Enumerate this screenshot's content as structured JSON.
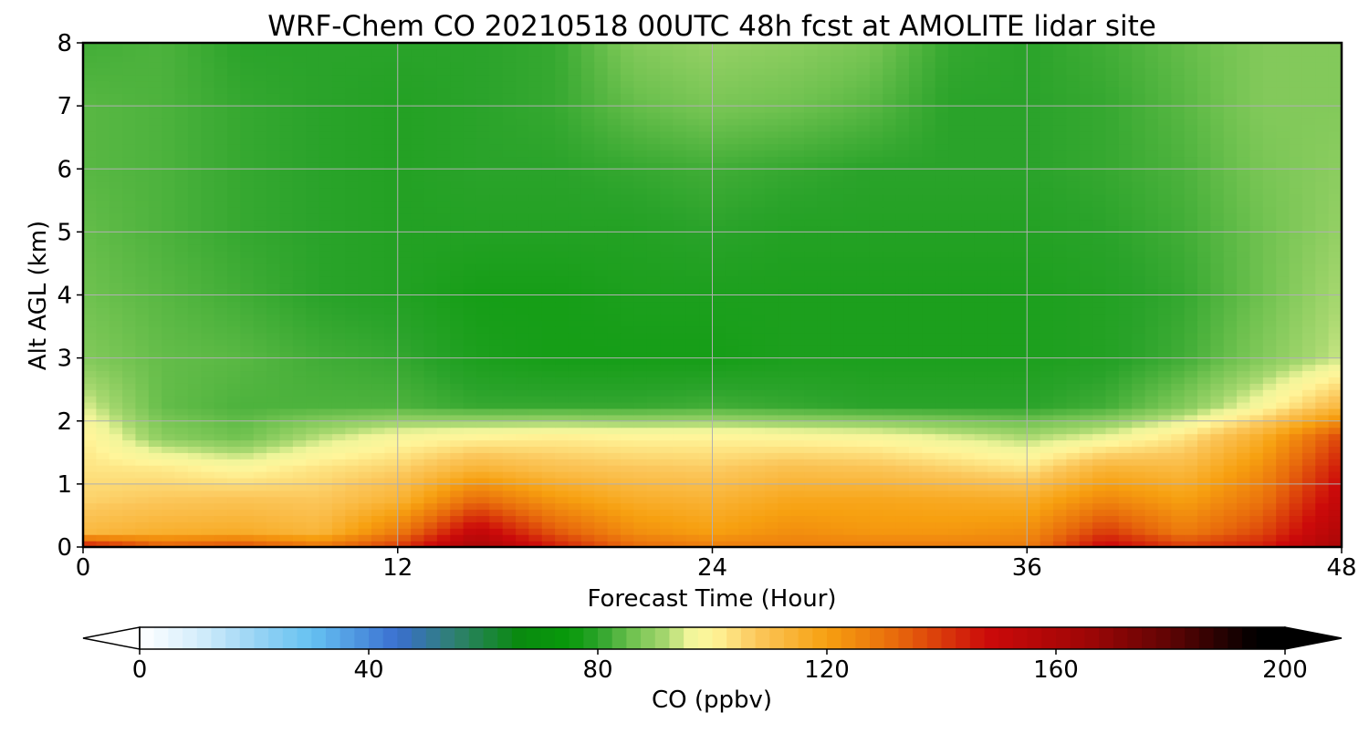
{
  "chart_data": {
    "type": "heatmap",
    "title": "WRF-Chem CO  20210518 00UTC 48h fcst at AMOLITE lidar site",
    "xlabel": "Forecast Time (Hour)",
    "ylabel": "Alt AGL (km)",
    "xlim": [
      0,
      48
    ],
    "ylim": [
      0,
      8
    ],
    "x_ticks": [
      "0",
      "12",
      "24",
      "36",
      "48"
    ],
    "y_ticks": [
      "0",
      "1",
      "2",
      "3",
      "4",
      "5",
      "6",
      "7",
      "8"
    ],
    "grid": true,
    "x": [
      0,
      3,
      6,
      9,
      12,
      15,
      18,
      21,
      24,
      27,
      30,
      33,
      36,
      39,
      42,
      45,
      48
    ],
    "y": [
      0,
      0.25,
      0.75,
      1.25,
      1.75,
      2.25,
      3,
      4,
      5,
      6,
      7,
      8
    ],
    "z_rows": [
      [
        148,
        135,
        138,
        130,
        140,
        162,
        145,
        132,
        128,
        128,
        128,
        128,
        128,
        150,
        140,
        145,
        162
      ],
      [
        112,
        115,
        116,
        113,
        128,
        152,
        135,
        124,
        120,
        124,
        122,
        122,
        124,
        140,
        128,
        138,
        158
      ],
      [
        106,
        108,
        109,
        108,
        114,
        132,
        122,
        116,
        114,
        118,
        118,
        117,
        116,
        126,
        120,
        130,
        152
      ],
      [
        103,
        102,
        99,
        103,
        106,
        114,
        110,
        108,
        107,
        110,
        109,
        106,
        103,
        114,
        112,
        124,
        146
      ],
      [
        101,
        89,
        86,
        93,
        98,
        100,
        101,
        100,
        100,
        99,
        98,
        95,
        92,
        96,
        103,
        116,
        138
      ],
      [
        95,
        85,
        83,
        83,
        83,
        81,
        81,
        81,
        82,
        81,
        80,
        80,
        80,
        82,
        88,
        98,
        112
      ],
      [
        88,
        85,
        84,
        82,
        81,
        78,
        77,
        77,
        77,
        78,
        78,
        78,
        78,
        79,
        82,
        88,
        94
      ],
      [
        86,
        84,
        82,
        80,
        79,
        77,
        77,
        78,
        78,
        78,
        78,
        78,
        78,
        79,
        81,
        86,
        92
      ],
      [
        85,
        83,
        81,
        80,
        79,
        79,
        79,
        79,
        80,
        79,
        79,
        79,
        79,
        80,
        82,
        86,
        90
      ],
      [
        84,
        83,
        81,
        80,
        79,
        80,
        80,
        81,
        82,
        81,
        80,
        80,
        80,
        81,
        83,
        87,
        89
      ],
      [
        84,
        83,
        81,
        80,
        79,
        80,
        81,
        85,
        87,
        86,
        84,
        80,
        80,
        81,
        84,
        88,
        88
      ],
      [
        82,
        83,
        80,
        80,
        80,
        80,
        81,
        88,
        90,
        89,
        87,
        81,
        80,
        82,
        85,
        88,
        88
      ]
    ],
    "colorbar": {
      "label": "CO  (ppbv)",
      "min": 0,
      "max": 200,
      "ticks": [
        "0",
        "40",
        "80",
        "120",
        "160",
        "200"
      ],
      "extend": "both",
      "stops": [
        [
          0,
          "#ffffff"
        ],
        [
          10,
          "#d6eefb"
        ],
        [
          22,
          "#8fd0f3"
        ],
        [
          30,
          "#66c2f2"
        ],
        [
          45,
          "#3a6fd0"
        ],
        [
          55,
          "#2f8070"
        ],
        [
          66,
          "#0a8a10"
        ],
        [
          75,
          "#089a0a"
        ],
        [
          80,
          "#2aa32a"
        ],
        [
          86,
          "#70c250"
        ],
        [
          92,
          "#a8d870"
        ],
        [
          96,
          "#f0f59a"
        ],
        [
          100,
          "#fff59a"
        ],
        [
          108,
          "#fbc65a"
        ],
        [
          120,
          "#f7a010"
        ],
        [
          132,
          "#e86a0c"
        ],
        [
          148,
          "#cc0a0a"
        ],
        [
          165,
          "#a00606"
        ],
        [
          180,
          "#5e0404"
        ],
        [
          195,
          "#000000"
        ],
        [
          200,
          "#000000"
        ]
      ]
    }
  }
}
